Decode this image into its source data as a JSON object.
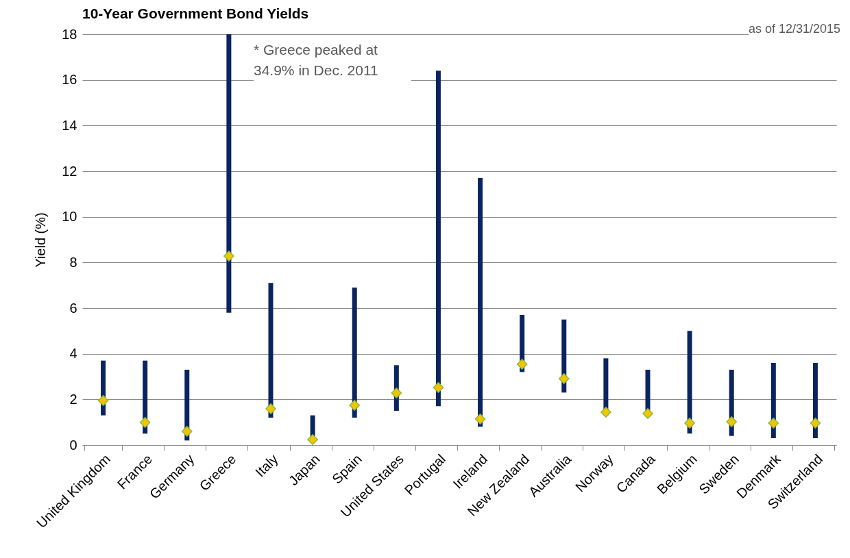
{
  "chart_data": {
    "type": "bar",
    "title": "10-Year Government Bond Yields",
    "ylabel": "Yield (%)",
    "annotations": [
      "as of 12/31/2015",
      "* Greece peaked at 34.9% in Dec. 2011"
    ],
    "categories": [
      "United Kingdom",
      "France",
      "Germany",
      "Greece",
      "Italy",
      "Japan",
      "Spain",
      "United States",
      "Portugal",
      "Ireland",
      "New Zealand",
      "Australia",
      "Norway",
      "Canada",
      "Belgium",
      "Sweden",
      "Denmark",
      "Switzerland"
    ],
    "ylim": [
      0,
      18
    ],
    "yticks": [
      0,
      2,
      4,
      6,
      8,
      10,
      12,
      14,
      16,
      18
    ],
    "grid": "y",
    "series": [
      {
        "color": "#0b2461",
        "base": [
          1.3,
          0.5,
          0.2,
          5.8,
          1.2,
          0.2,
          1.2,
          1.5,
          1.7,
          0.8,
          3.2,
          2.3,
          1.3,
          1.3,
          0.5,
          0.4,
          0.3,
          0.3
        ],
        "values": [
          2.4,
          3.2,
          3.1,
          12.2,
          5.9,
          1.1,
          5.7,
          2.0,
          14.7,
          10.9,
          2.5,
          3.2,
          2.5,
          2.0,
          4.5,
          2.9,
          3.3,
          3.3
        ]
      },
      {
        "type": "scatter",
        "color": "#f5c400",
        "marker": "diamond",
        "values": [
          1.95,
          0.99,
          0.6,
          8.28,
          1.59,
          0.24,
          1.74,
          2.28,
          2.52,
          1.14,
          3.54,
          2.91,
          1.44,
          1.38,
          0.96,
          1.02,
          0.96,
          0.96
        ]
      }
    ]
  }
}
